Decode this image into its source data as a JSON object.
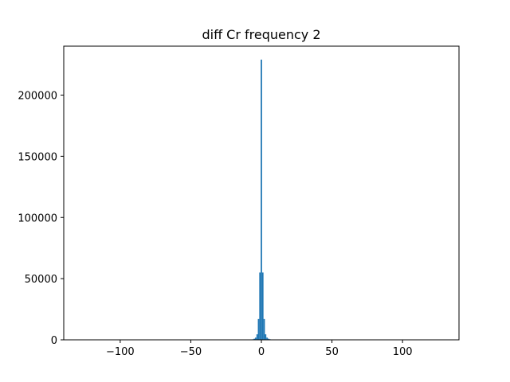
{
  "chart_data": {
    "type": "bar",
    "title": "diff Cr frequency 2",
    "xlabel": "",
    "ylabel": "",
    "xlim": [
      -140,
      140
    ],
    "ylim": [
      0,
      240000
    ],
    "grid": false,
    "legend": "none",
    "color": "#1f77b4",
    "x_ticks": [
      -100,
      -50,
      0,
      50,
      100
    ],
    "x_tick_labels": [
      "−100",
      "−50",
      "0",
      "50",
      "100"
    ],
    "y_ticks": [
      0,
      50000,
      100000,
      150000,
      200000
    ],
    "y_tick_labels": [
      "0",
      "50000",
      "100000",
      "150000",
      "200000"
    ],
    "bin_width": 1,
    "bins": [
      {
        "x": -6,
        "count": 400
      },
      {
        "x": -5,
        "count": 900
      },
      {
        "x": -4,
        "count": 1800
      },
      {
        "x": -3,
        "count": 4500
      },
      {
        "x": -2,
        "count": 17000
      },
      {
        "x": -1,
        "count": 55000
      },
      {
        "x": 0,
        "count": 229000
      },
      {
        "x": 1,
        "count": 55000
      },
      {
        "x": 2,
        "count": 17000
      },
      {
        "x": 3,
        "count": 4500
      },
      {
        "x": 4,
        "count": 1800
      },
      {
        "x": 5,
        "count": 900
      },
      {
        "x": 6,
        "count": 500
      },
      {
        "x": 7,
        "count": 300
      }
    ]
  }
}
